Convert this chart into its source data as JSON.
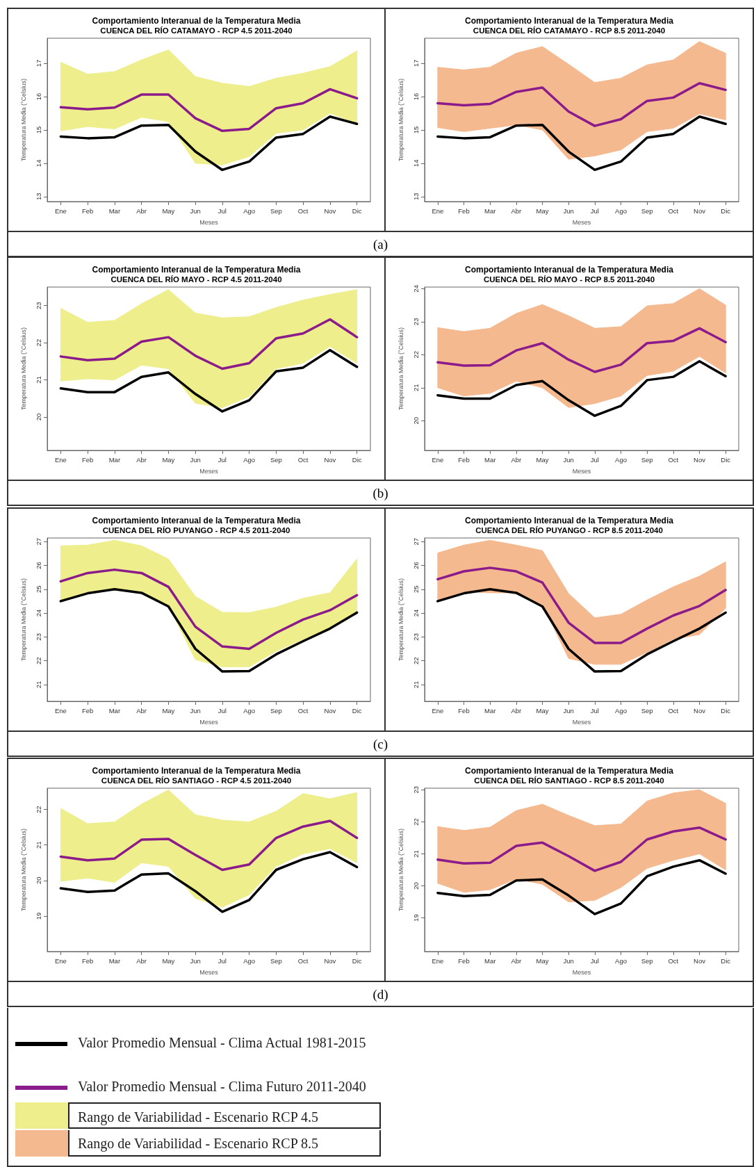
{
  "chart_data": [
    {
      "type": "line",
      "title": "Comportamiento Interanual de la Temperatura Media",
      "subtitle": "CUENCA DEL RÍO CATAMAYO - RCP 4.5 2011-2040",
      "legend": "bottom",
      "xlabel": "Meses",
      "ylabel": "Temperatura Media (°Celsius)",
      "annotations": [
        "(a)"
      ],
      "categories": [
        "Ene",
        "Feb",
        "Mar",
        "Abr",
        "May",
        "Jun",
        "Jul",
        "Ago",
        "Sep",
        "Oct",
        "Nov",
        "Dic"
      ],
      "ylim": [
        12.85,
        17.75
      ],
      "yticks": [
        13,
        14,
        15,
        16,
        17
      ],
      "series": [
        {
          "name": "Rango de Variabilidad - Escenario RCP 4.5",
          "color": "#eeee8c",
          "values": [
            null,
            null,
            null,
            null,
            null,
            null,
            null,
            null,
            null,
            null,
            null,
            null
          ],
          "lower": [
            14.97,
            15.1,
            15.03,
            15.38,
            15.25,
            14.0,
            13.95,
            14.2,
            14.9,
            15.0,
            15.5,
            15.2
          ],
          "upper": [
            17.03,
            16.67,
            16.75,
            17.1,
            17.4,
            16.6,
            16.4,
            16.3,
            16.55,
            16.7,
            16.9,
            17.37
          ]
        },
        {
          "name": "Valor Promedio Mensual - Clima Actual 1981-2015",
          "color": "#000000",
          "values": [
            14.8,
            14.75,
            14.78,
            15.13,
            15.15,
            14.35,
            13.8,
            14.05,
            14.77,
            14.88,
            15.4,
            15.18
          ]
        },
        {
          "name": "Valor Promedio Mensual - Clima Futuro 2011-2040",
          "color": "#8b1a8b",
          "values": [
            15.68,
            15.62,
            15.67,
            16.06,
            16.06,
            15.35,
            14.97,
            15.03,
            15.65,
            15.8,
            16.22,
            15.95
          ]
        }
      ]
    },
    {
      "type": "line",
      "title": "Comportamiento Interanual de la Temperatura Media",
      "subtitle": "CUENCA DEL RÍO CATAMAYO - RCP 8.5 2011-2040",
      "legend": "bottom",
      "xlabel": "Meses",
      "ylabel": "Temperatura Media (°Celsius)",
      "categories": [
        "Ene",
        "Feb",
        "Mar",
        "Abr",
        "May",
        "Jun",
        "Jul",
        "Ago",
        "Sep",
        "Oct",
        "Nov",
        "Dic"
      ],
      "ylim": [
        12.85,
        17.75
      ],
      "yticks": [
        13,
        14,
        15,
        16,
        17
      ],
      "series": [
        {
          "name": "Rango de Variabilidad - Escenario RCP 8.5",
          "color": "#f5b98f",
          "values": [
            null,
            null,
            null,
            null,
            null,
            null,
            null,
            null,
            null,
            null,
            null,
            null
          ],
          "lower": [
            15.07,
            14.95,
            15.05,
            15.15,
            15.0,
            14.12,
            14.22,
            14.4,
            14.95,
            15.05,
            15.48,
            15.3
          ],
          "upper": [
            16.88,
            16.8,
            16.88,
            17.3,
            17.5,
            16.97,
            16.42,
            16.55,
            16.95,
            17.1,
            17.65,
            17.3
          ]
        },
        {
          "color": "#000000",
          "values": [
            14.8,
            14.75,
            14.78,
            15.13,
            15.15,
            14.35,
            13.8,
            14.05,
            14.77,
            14.88,
            15.4,
            15.18
          ]
        },
        {
          "color": "#8b1a8b",
          "values": [
            15.8,
            15.74,
            15.78,
            16.14,
            16.27,
            15.55,
            15.12,
            15.32,
            15.87,
            15.97,
            16.4,
            16.2
          ]
        }
      ]
    },
    {
      "type": "line",
      "title": "Comportamiento Interanual de la Temperatura Media",
      "subtitle": "CUENCA DEL RÍO MAYO - RCP 4.5 2011-2040",
      "xlabel": "Meses",
      "ylabel": "Temperatura Media (°Celsius)",
      "annotations": [
        "(b)"
      ],
      "categories": [
        "Ene",
        "Feb",
        "Mar",
        "Abr",
        "May",
        "Jun",
        "Jul",
        "Ago",
        "Sep",
        "Oct",
        "Nov",
        "Dic"
      ],
      "ylim": [
        19.1,
        23.5
      ],
      "yticks": [
        20,
        21,
        22,
        23
      ],
      "series": [
        {
          "color": "#eeee8c",
          "values": [
            null,
            null,
            null,
            null,
            null,
            null,
            null,
            null,
            null,
            null,
            null,
            null
          ],
          "lower": [
            20.97,
            21.03,
            21.0,
            21.4,
            21.3,
            20.37,
            20.25,
            20.55,
            21.3,
            21.45,
            21.9,
            21.45
          ],
          "upper": [
            22.93,
            22.55,
            22.6,
            23.05,
            23.43,
            22.8,
            22.67,
            22.7,
            22.95,
            23.15,
            23.3,
            23.43
          ]
        },
        {
          "color": "#000000",
          "values": [
            20.77,
            20.67,
            20.67,
            21.08,
            21.2,
            20.62,
            20.15,
            20.45,
            21.23,
            21.33,
            21.8,
            21.35
          ]
        },
        {
          "color": "#8b1a8b",
          "values": [
            21.63,
            21.53,
            21.57,
            22.03,
            22.15,
            21.65,
            21.3,
            21.45,
            22.12,
            22.25,
            22.63,
            22.15
          ]
        }
      ]
    },
    {
      "type": "line",
      "title": "Comportamiento Interanual de la Temperatura Media",
      "subtitle": "CUENCA DEL RÍO MAYO - RCP 8.5 2011-2040",
      "xlabel": "Meses",
      "ylabel": "Temperatura Media (°Celsius)",
      "categories": [
        "Ene",
        "Feb",
        "Mar",
        "Abr",
        "May",
        "Jun",
        "Jul",
        "Ago",
        "Sep",
        "Oct",
        "Nov",
        "Dic"
      ],
      "ylim": [
        19.1,
        24.05
      ],
      "yticks": [
        20,
        21,
        22,
        23,
        24
      ],
      "series": [
        {
          "color": "#f5b98f",
          "values": [
            null,
            null,
            null,
            null,
            null,
            null,
            null,
            null,
            null,
            null,
            null,
            null
          ],
          "lower": [
            21.0,
            20.75,
            20.83,
            21.2,
            21.0,
            20.4,
            20.52,
            20.75,
            21.37,
            21.5,
            21.95,
            21.45
          ],
          "upper": [
            22.82,
            22.7,
            22.8,
            23.25,
            23.52,
            23.18,
            22.8,
            22.85,
            23.48,
            23.55,
            24.0,
            23.5
          ]
        },
        {
          "color": "#000000",
          "values": [
            20.77,
            20.67,
            20.67,
            21.08,
            21.2,
            20.62,
            20.15,
            20.45,
            21.23,
            21.33,
            21.8,
            21.35
          ]
        },
        {
          "color": "#8b1a8b",
          "values": [
            21.77,
            21.67,
            21.68,
            22.13,
            22.35,
            21.85,
            21.48,
            21.7,
            22.35,
            22.42,
            22.8,
            22.38
          ]
        }
      ]
    },
    {
      "type": "line",
      "title": "Comportamiento Interanual de la Temperatura Media",
      "subtitle": "CUENCA DEL RÍO PUYANGO - RCP 4.5 2011-2040",
      "xlabel": "Meses",
      "ylabel": "Temperatura Media (°Celsius)",
      "annotations": [
        "(c)"
      ],
      "categories": [
        "Ene",
        "Feb",
        "Mar",
        "Abr",
        "May",
        "Jun",
        "Jul",
        "Ago",
        "Sep",
        "Oct",
        "Nov",
        "Dic"
      ],
      "ylim": [
        20.3,
        27.15
      ],
      "yticks": [
        21,
        22,
        23,
        24,
        25,
        26,
        27
      ],
      "series": [
        {
          "color": "#eeee8c",
          "values": [
            null,
            null,
            null,
            null,
            null,
            null,
            null,
            null,
            null,
            null,
            null,
            null
          ],
          "lower": [
            24.55,
            24.9,
            25.05,
            24.9,
            24.3,
            22.05,
            21.75,
            21.75,
            22.4,
            22.9,
            23.4,
            24.05
          ],
          "upper": [
            26.82,
            26.85,
            27.05,
            26.82,
            26.27,
            24.7,
            24.03,
            24.02,
            24.25,
            24.62,
            24.85,
            26.27
          ]
        },
        {
          "color": "#000000",
          "values": [
            24.5,
            24.83,
            25.0,
            24.85,
            24.28,
            22.5,
            21.55,
            21.57,
            22.27,
            22.82,
            23.35,
            24.02
          ]
        },
        {
          "color": "#8b1a8b",
          "values": [
            25.33,
            25.68,
            25.82,
            25.68,
            25.1,
            23.43,
            22.6,
            22.5,
            23.17,
            23.73,
            24.12,
            24.75
          ]
        }
      ]
    },
    {
      "type": "line",
      "title": "Comportamiento Interanual de la Temperatura Media",
      "subtitle": "CUENCA DEL RÍO PUYANGO - RCP 8.5 2011-2040",
      "xlabel": "Meses",
      "ylabel": "Temperatura Media (°Celsius)",
      "categories": [
        "Ene",
        "Feb",
        "Mar",
        "Abr",
        "May",
        "Jun",
        "Jul",
        "Ago",
        "Sep",
        "Oct",
        "Nov",
        "Dic"
      ],
      "ylim": [
        20.3,
        27.15
      ],
      "yticks": [
        21,
        22,
        23,
        24,
        25,
        26,
        27
      ],
      "series": [
        {
          "color": "#f5b98f",
          "values": [
            null,
            null,
            null,
            null,
            null,
            null,
            null,
            null,
            null,
            null,
            null,
            null
          ],
          "lower": [
            24.55,
            24.9,
            24.85,
            24.85,
            24.35,
            22.1,
            21.85,
            21.85,
            22.35,
            22.9,
            23.1,
            24.2
          ],
          "upper": [
            26.52,
            26.85,
            27.05,
            26.85,
            26.62,
            24.82,
            23.8,
            23.95,
            24.55,
            25.1,
            25.55,
            26.15
          ]
        },
        {
          "color": "#000000",
          "values": [
            24.5,
            24.83,
            25.0,
            24.85,
            24.28,
            22.5,
            21.55,
            21.57,
            22.27,
            22.82,
            23.35,
            24.02
          ]
        },
        {
          "color": "#8b1a8b",
          "values": [
            25.42,
            25.75,
            25.9,
            25.75,
            25.28,
            23.6,
            22.75,
            22.75,
            23.35,
            23.9,
            24.3,
            24.97
          ]
        }
      ]
    },
    {
      "type": "line",
      "title": "Comportamiento Interanual de la Temperatura Media",
      "subtitle": "CUENCA DEL RÍO SANTIAGO - RCP 4.5 2011-2040",
      "xlabel": "Meses",
      "ylabel": "Temperatura Media (°Celsius)",
      "annotations": [
        "(d)"
      ],
      "categories": [
        "Ene",
        "Feb",
        "Mar",
        "Abr",
        "May",
        "Jun",
        "Jul",
        "Ago",
        "Sep",
        "Oct",
        "Nov",
        "Dic"
      ],
      "ylim": [
        18.0,
        22.6
      ],
      "yticks": [
        19,
        20,
        21,
        22
      ],
      "series": [
        {
          "color": "#eeee8c",
          "values": [
            null,
            null,
            null,
            null,
            null,
            null,
            null,
            null,
            null,
            null,
            null,
            null
          ],
          "lower": [
            19.98,
            20.07,
            19.95,
            20.5,
            20.4,
            19.5,
            19.25,
            19.6,
            20.4,
            20.75,
            20.9,
            20.5
          ],
          "upper": [
            22.03,
            21.6,
            21.65,
            22.15,
            22.55,
            21.85,
            21.7,
            21.65,
            21.95,
            22.45,
            22.3,
            22.48
          ]
        },
        {
          "color": "#000000",
          "values": [
            19.78,
            19.68,
            19.72,
            20.17,
            20.2,
            19.7,
            19.12,
            19.45,
            20.3,
            20.6,
            20.8,
            20.38
          ]
        },
        {
          "color": "#8b1a8b",
          "values": [
            20.67,
            20.57,
            20.62,
            21.15,
            21.17,
            20.72,
            20.3,
            20.45,
            21.2,
            21.52,
            21.68,
            21.2
          ]
        }
      ]
    },
    {
      "type": "line",
      "title": "Comportamiento Interanual de la Temperatura Media",
      "subtitle": "CUENCA DEL RÍO SANTIAGO - RCP 8.5 2011-2040",
      "xlabel": "Meses",
      "ylabel": "Temperatura Media (°Celsius)",
      "categories": [
        "Ene",
        "Feb",
        "Mar",
        "Abr",
        "May",
        "Jun",
        "Jul",
        "Ago",
        "Sep",
        "Oct",
        "Nov",
        "Dic"
      ],
      "ylim": [
        17.95,
        23.05
      ],
      "yticks": [
        19,
        20,
        21,
        22,
        23
      ],
      "series": [
        {
          "color": "#f5b98f",
          "values": [
            null,
            null,
            null,
            null,
            null,
            null,
            null,
            null,
            null,
            null,
            null,
            null
          ],
          "lower": [
            20.08,
            19.8,
            19.88,
            20.22,
            20.05,
            19.5,
            19.55,
            19.95,
            20.55,
            20.8,
            21.0,
            20.5
          ],
          "upper": [
            21.85,
            21.73,
            21.83,
            22.35,
            22.55,
            22.2,
            21.88,
            21.93,
            22.65,
            22.9,
            23.0,
            22.58
          ]
        },
        {
          "color": "#000000",
          "values": [
            19.78,
            19.68,
            19.72,
            20.17,
            20.2,
            19.7,
            19.12,
            19.45,
            20.3,
            20.6,
            20.8,
            20.38
          ]
        },
        {
          "color": "#8b1a8b",
          "values": [
            20.82,
            20.7,
            20.72,
            21.25,
            21.35,
            20.93,
            20.47,
            20.75,
            21.45,
            21.7,
            21.82,
            21.45
          ]
        }
      ]
    }
  ]
}
